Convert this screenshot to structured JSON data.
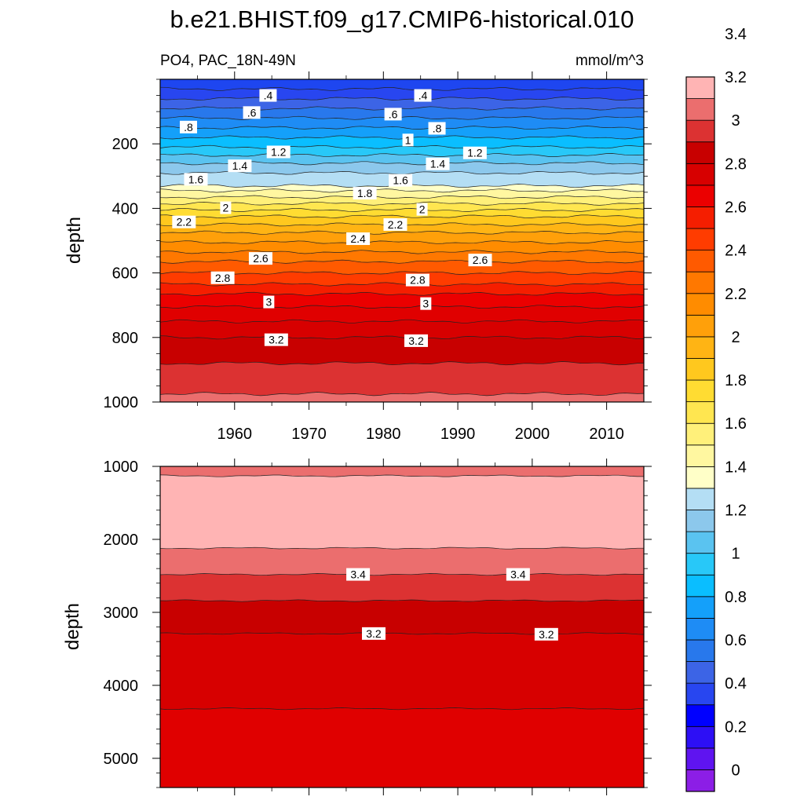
{
  "title": "b.e21.BHIST.f09_g17.CMIP6-historical.010",
  "chart_data": {
    "type": "heatmap",
    "subtitle_left": "PO4, PAC_18N-49N",
    "units": "mmol/m^3",
    "x_range": [
      1950,
      2015
    ],
    "x_ticks": [
      1960,
      1970,
      1980,
      1990,
      2000,
      2010
    ],
    "colorbar": {
      "levels": [
        0,
        0.2,
        0.4,
        0.6,
        0.8,
        1,
        1.2,
        1.4,
        1.6,
        1.8,
        2,
        2.2,
        2.4,
        2.6,
        2.8,
        3,
        3.2,
        3.4
      ],
      "level_labels": [
        "0",
        "0.2",
        "0.4",
        "0.6",
        "0.8",
        "1",
        "1.2",
        "1.4",
        "1.6",
        "1.8",
        "2",
        "2.2",
        "2.4",
        "2.6",
        "2.8",
        "3",
        "3.2",
        "3.4"
      ],
      "colors": [
        "#8c1ee6",
        "#5f14f0",
        "#2d0ff5",
        "#0000ff",
        "#2846f0",
        "#3c64e6",
        "#2878ec",
        "#1e8cf5",
        "#14a0fa",
        "#0abeff",
        "#28c8f8",
        "#5ac3f0",
        "#8cc8ec",
        "#b4def4",
        "#ffffc8",
        "#fff7a0",
        "#fff07a",
        "#ffe650",
        "#ffdc32",
        "#ffc81e",
        "#ffb414",
        "#ffa00a",
        "#ff8c00",
        "#ff7800",
        "#ff5a00",
        "#ff3c00",
        "#f51e00",
        "#eb0000",
        "#d70000",
        "#c80000",
        "#dc3232",
        "#eb6e6e",
        "#ffb4b4"
      ]
    },
    "panels": [
      {
        "ylabel": "depth",
        "ylim": [
          0,
          1000
        ],
        "y_ticks": [
          "200",
          "400",
          "600",
          "800",
          "1000"
        ],
        "y_tick_values": [
          200,
          400,
          600,
          800,
          1000
        ],
        "bands": [
          {
            "top": 0,
            "color": "#1e46f0"
          },
          {
            "top": 30,
            "color": "#2846f0"
          },
          {
            "top": 60,
            "color": "#3c64e6"
          },
          {
            "top": 90,
            "color": "#2878ec"
          },
          {
            "top": 120,
            "color": "#1e8cf5"
          },
          {
            "top": 150,
            "color": "#14a0fa"
          },
          {
            "top": 180,
            "color": "#0abeff"
          },
          {
            "top": 210,
            "color": "#28c8f8"
          },
          {
            "top": 235,
            "color": "#5ac3f0"
          },
          {
            "top": 260,
            "color": "#8cc8ec"
          },
          {
            "top": 290,
            "color": "#b4def4"
          },
          {
            "top": 330,
            "color": "#ffffc8"
          },
          {
            "top": 345,
            "color": "#fff7a0"
          },
          {
            "top": 365,
            "color": "#fff07a"
          },
          {
            "top": 385,
            "color": "#ffe650"
          },
          {
            "top": 405,
            "color": "#ffdc32"
          },
          {
            "top": 425,
            "color": "#ffc81e"
          },
          {
            "top": 450,
            "color": "#ffb414"
          },
          {
            "top": 475,
            "color": "#ffa00a"
          },
          {
            "top": 505,
            "color": "#ff8c00"
          },
          {
            "top": 535,
            "color": "#ff7800"
          },
          {
            "top": 565,
            "color": "#ff5a00"
          },
          {
            "top": 600,
            "color": "#ff3c00"
          },
          {
            "top": 635,
            "color": "#f51e00"
          },
          {
            "top": 665,
            "color": "#eb0000"
          },
          {
            "top": 705,
            "color": "#e00000"
          },
          {
            "top": 750,
            "color": "#d70000"
          },
          {
            "top": 800,
            "color": "#c80000"
          },
          {
            "top": 880,
            "color": "#dc3232"
          },
          {
            "top": 975,
            "color": "#eb6e6e"
          }
        ],
        "contour_labels": [
          {
            "text": ".4",
            "year": 1964.5,
            "depth": 50
          },
          {
            "text": ".4",
            "year": 1985.3,
            "depth": 50
          },
          {
            "text": ".6",
            "year": 1962.3,
            "depth": 103
          },
          {
            "text": ".6",
            "year": 1981.3,
            "depth": 108
          },
          {
            "text": ".8",
            "year": 1953.8,
            "depth": 148
          },
          {
            "text": ".8",
            "year": 1987.2,
            "depth": 152
          },
          {
            "text": "1",
            "year": 1983.3,
            "depth": 188
          },
          {
            "text": "1.2",
            "year": 1965.9,
            "depth": 225
          },
          {
            "text": "1.2",
            "year": 1992.3,
            "depth": 228
          },
          {
            "text": "1.4",
            "year": 1960.7,
            "depth": 268
          },
          {
            "text": "1.4",
            "year": 1987.3,
            "depth": 262
          },
          {
            "text": "1.6",
            "year": 1954.8,
            "depth": 310
          },
          {
            "text": "1.6",
            "year": 1982.3,
            "depth": 313
          },
          {
            "text": "1.8",
            "year": 1977.5,
            "depth": 353
          },
          {
            "text": "2",
            "year": 1958.8,
            "depth": 398
          },
          {
            "text": "2",
            "year": 1985.2,
            "depth": 403
          },
          {
            "text": "2.2",
            "year": 1953.2,
            "depth": 442
          },
          {
            "text": "2.2",
            "year": 1981.6,
            "depth": 450
          },
          {
            "text": "2.4",
            "year": 1976.6,
            "depth": 494
          },
          {
            "text": "2.6",
            "year": 1963.5,
            "depth": 555
          },
          {
            "text": "2.6",
            "year": 1993.0,
            "depth": 560
          },
          {
            "text": "2.8",
            "year": 1958.4,
            "depth": 615
          },
          {
            "text": "2.8",
            "year": 1984.6,
            "depth": 622
          },
          {
            "text": "3",
            "year": 1964.6,
            "depth": 690
          },
          {
            "text": "3",
            "year": 1985.7,
            "depth": 695
          },
          {
            "text": "3.2",
            "year": 1965.6,
            "depth": 807
          },
          {
            "text": "3.2",
            "year": 1984.4,
            "depth": 810
          }
        ]
      },
      {
        "ylabel": "depth",
        "ylim": [
          1000,
          5400
        ],
        "y_ticks": [
          "1000",
          "2000",
          "3000",
          "4000",
          "5000"
        ],
        "y_tick_values": [
          1000,
          2000,
          3000,
          4000,
          5000
        ],
        "bands": [
          {
            "top": 1000,
            "color": "#eb6e6e"
          },
          {
            "top": 1130,
            "color": "#ffb4b4"
          },
          {
            "top": 2120,
            "color": "#eb6e6e"
          },
          {
            "top": 2480,
            "color": "#dc3232"
          },
          {
            "top": 2840,
            "color": "#c80000"
          },
          {
            "top": 3290,
            "color": "#d70000"
          },
          {
            "top": 4320,
            "color": "#e00000"
          }
        ],
        "contour_labels": [
          {
            "text": "3.4",
            "year": 1976.6,
            "depth": 2480
          },
          {
            "text": "3.4",
            "year": 1998.1,
            "depth": 2480
          },
          {
            "text": "3.2",
            "year": 1978.7,
            "depth": 3290
          },
          {
            "text": "3.2",
            "year": 2001.9,
            "depth": 3300
          }
        ]
      }
    ]
  }
}
